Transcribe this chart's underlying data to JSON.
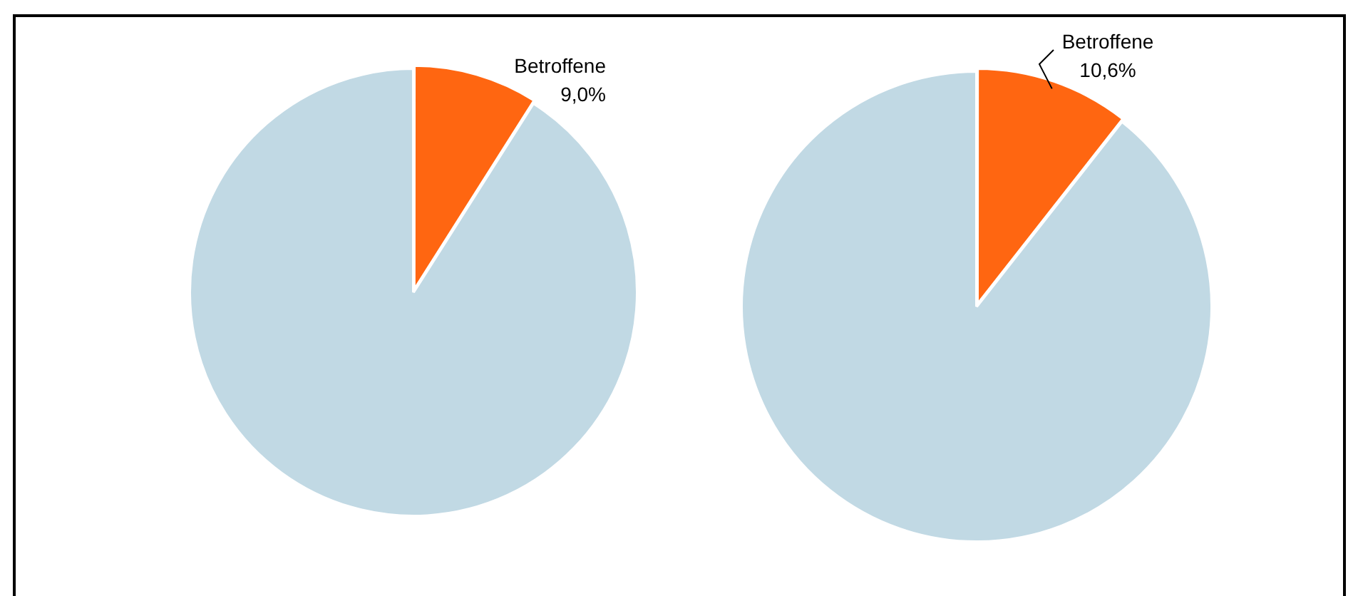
{
  "chart_data": [
    {
      "type": "pie",
      "categories": [
        "Betroffene",
        null
      ],
      "values": [
        9.0,
        91.0
      ],
      "colors": [
        "#ff6611",
        "#c1d9e4"
      ],
      "value_labels": [
        "9,0%",
        null
      ]
    },
    {
      "type": "pie",
      "categories": [
        "Betroffene",
        null
      ],
      "values": [
        10.6,
        89.4
      ],
      "colors": [
        "#ff6611",
        "#c1d9e4"
      ],
      "value_labels": [
        "10,6%",
        null
      ]
    }
  ]
}
